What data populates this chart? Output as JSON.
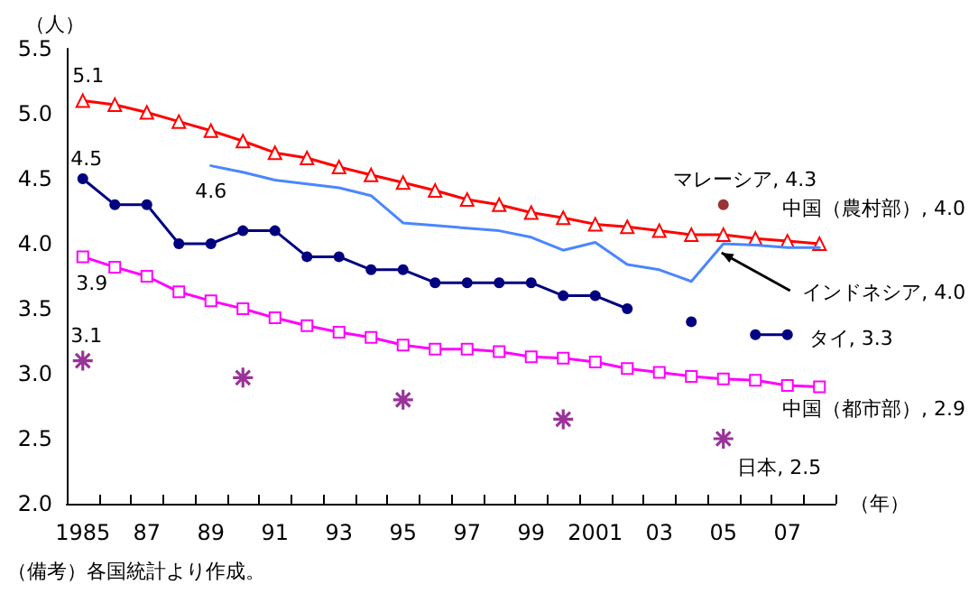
{
  "chart_data": {
    "type": "line",
    "ylabel": "（人）",
    "xlabel": "（年）",
    "categories": [
      "1985",
      null,
      "87",
      null,
      "89",
      null,
      "91",
      null,
      "93",
      null,
      "95",
      null,
      "97",
      null,
      "99",
      null,
      "2001",
      null,
      "03",
      null,
      "05",
      null,
      "07",
      null
    ],
    "ylim": [
      2.0,
      5.5
    ],
    "yticks": [
      {
        "value": 2,
        "label": "2.0"
      },
      {
        "value": 2.5,
        "label": "2.5"
      },
      {
        "value": 3,
        "label": "3.0"
      },
      {
        "value": 3.5,
        "label": "3.5"
      },
      {
        "value": 4,
        "label": "4.0"
      },
      {
        "value": 4.5,
        "label": "4.5"
      },
      {
        "value": 5,
        "label": "5.0"
      },
      {
        "value": 5.5,
        "label": "5.5"
      }
    ],
    "series": [
      {
        "marker": "triangle",
        "color": "#ff0000",
        "values": [
          5.1,
          5.07,
          5.01,
          4.94,
          4.87,
          4.79,
          4.7,
          4.66,
          4.59,
          4.53,
          4.47,
          4.41,
          4.34,
          4.3,
          4.24,
          4.2,
          4.15,
          4.13,
          4.1,
          4.07,
          4.07,
          4.04,
          4.02,
          4.0
        ]
      },
      {
        "marker": "none",
        "color": "#4a86ff",
        "values": [
          null,
          null,
          null,
          null,
          4.6,
          4.55,
          4.49,
          4.46,
          4.43,
          4.37,
          4.16,
          4.14,
          4.12,
          4.1,
          4.05,
          3.95,
          4.01,
          3.84,
          3.8,
          3.71,
          4.0,
          3.99,
          3.97,
          3.97
        ]
      },
      {
        "marker": "circle",
        "color": "#000080",
        "values": [
          4.5,
          4.3,
          4.3,
          4.0,
          4.0,
          4.1,
          4.1,
          3.9,
          3.9,
          3.8,
          3.8,
          3.7,
          3.7,
          3.7,
          3.7,
          3.6,
          3.6,
          3.5,
          null,
          3.4,
          null,
          3.3,
          3.3,
          null
        ]
      },
      {
        "marker": "square",
        "color": "#ff00ff",
        "values": [
          3.9,
          3.82,
          3.75,
          3.63,
          3.56,
          3.5,
          3.43,
          3.37,
          3.32,
          3.28,
          3.22,
          3.19,
          3.19,
          3.17,
          3.13,
          3.12,
          3.09,
          3.04,
          3.01,
          2.98,
          2.96,
          2.95,
          2.91,
          2.9
        ]
      },
      {
        "type": "scatter",
        "marker": "circle",
        "color": "#800000",
        "values": [
          null,
          null,
          null,
          null,
          null,
          null,
          null,
          null,
          null,
          null,
          null,
          null,
          null,
          null,
          null,
          null,
          null,
          null,
          null,
          null,
          4.3,
          null,
          null,
          null
        ]
      },
      {
        "type": "scatter",
        "marker": "cross",
        "color": "#800080",
        "values": [
          3.1,
          null,
          null,
          null,
          null,
          2.97,
          null,
          null,
          null,
          null,
          2.8,
          null,
          null,
          null,
          null,
          2.65,
          null,
          null,
          null,
          null,
          2.5,
          null,
          null,
          null
        ]
      }
    ],
    "annotations": [
      {
        "text": "5.1",
        "x": "1985",
        "y": 5.1
      },
      {
        "text": "4.5",
        "x": "1985",
        "y": 4.5
      },
      {
        "text": "4.6",
        "x": "89",
        "y": 4.6
      },
      {
        "text": "3.9",
        "x": "1985",
        "y": 3.9
      },
      {
        "text": "3.1",
        "x": "1985",
        "y": 3.1
      },
      {
        "text": "マレーシア, 4.3",
        "x": "05",
        "y": 4.3
      },
      "中国（農村部）, 4.0",
      {
        "text": "インドネシア, 4.0",
        "x": "05",
        "y": 4.0
      },
      {
        "text": "タイ, 3.3",
        "x": "07",
        "y": 3.3
      },
      "中国（都市部）, 2.9",
      {
        "text": "日本, 2.5",
        "x": "05",
        "y": 2.5
      },
      "（備考）各国統計より作成。"
    ]
  }
}
